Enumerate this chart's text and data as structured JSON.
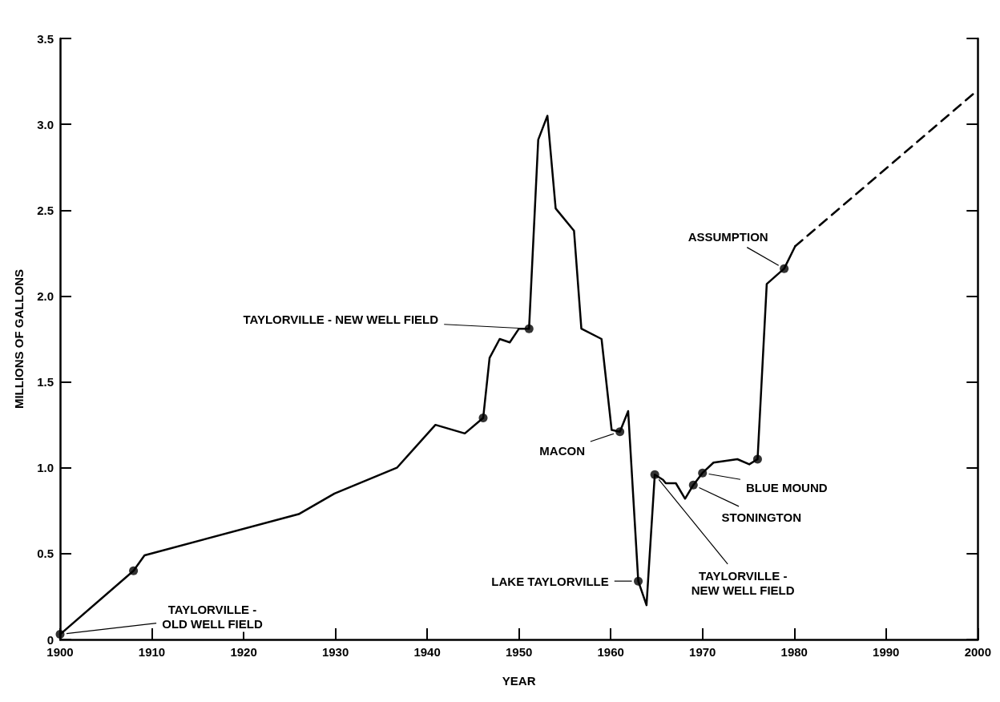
{
  "chart_data": {
    "type": "line",
    "xlabel": "YEAR",
    "ylabel": "MILLIONS OF GALLONS",
    "xlim": [
      1900,
      2000
    ],
    "xticks": [
      1900,
      1910,
      1920,
      1930,
      1940,
      1950,
      1960,
      1970,
      1980,
      1990,
      2000
    ],
    "ylim": [
      0,
      3.5
    ],
    "yticks": [
      0,
      0.5,
      {
        "value": 1,
        "label": "1.0"
      },
      1.5,
      {
        "value": 2,
        "label": "2.0"
      },
      2.5,
      {
        "value": 3,
        "label": "3.0"
      },
      3.5
    ],
    "grid": false,
    "series": [
      {
        "color": "#000000",
        "line_style": "solid",
        "marker": "none",
        "x": [
          1900,
          1908,
          1909.2,
          1926,
          1929.9,
          1936.7,
          1940.9,
          1944.1,
          1946.1,
          1946.8,
          1947.9,
          1949,
          1950,
          1951.1,
          1952.1,
          1953.1,
          1954,
          1956,
          1956.8,
          1959,
          1960.1,
          1961,
          1961.9,
          1963,
          1963.9,
          1964.8,
          1965.7,
          1966,
          1967.1,
          1968.1,
          1969,
          1970,
          1971.2,
          1973.8,
          1975.1,
          1976,
          1977,
          1978.9,
          1980.1
        ],
        "values": [
          0.03,
          0.4,
          0.49,
          0.73,
          0.85,
          1.0,
          1.25,
          1.2,
          1.29,
          1.64,
          1.75,
          1.73,
          1.81,
          1.81,
          2.91,
          3.05,
          2.51,
          2.38,
          1.81,
          1.75,
          1.22,
          1.21,
          1.33,
          0.34,
          0.2,
          0.96,
          0.93,
          0.91,
          0.91,
          0.82,
          0.9,
          0.97,
          1.03,
          1.05,
          1.02,
          1.05,
          2.07,
          2.16,
          2.29
        ]
      },
      {
        "color": "#000000",
        "line_style": "dashed",
        "marker": "none",
        "x": [
          1980.1,
          2000
        ],
        "values": [
          2.29,
          3.2
        ]
      },
      {
        "type": "scatter",
        "color": "#000000",
        "marker": "circle",
        "x": [
          1900,
          1908,
          1946.1,
          1951.1,
          1961,
          1963,
          1964.8,
          1969,
          1970,
          1976,
          1978.9
        ],
        "values": [
          0.03,
          0.4,
          1.29,
          1.81,
          1.21,
          0.34,
          0.96,
          0.9,
          0.97,
          1.05,
          2.16
        ]
      }
    ],
    "annotations": [
      {
        "text": "TAYLORVILLE -\nOLD WELL FIELD",
        "x": 1900,
        "y": 0.03
      },
      {
        "text": "TAYLORVILLE - NEW WELL FIELD",
        "x": 1951.1,
        "y": 1.81
      },
      {
        "text": "MACON",
        "x": 1961,
        "y": 1.21
      },
      {
        "text": "LAKE TAYLORVILLE",
        "x": 1963,
        "y": 0.34
      },
      {
        "text": "TAYLORVILLE -\nNEW WELL FIELD",
        "x": 1964.8,
        "y": 0.96
      },
      {
        "text": "STONINGTON",
        "x": 1969,
        "y": 0.9
      },
      {
        "text": "BLUE MOUND",
        "x": 1970,
        "y": 0.97
      },
      {
        "text": "ASSUMPTION",
        "x": 1978.9,
        "y": 2.16
      }
    ]
  }
}
